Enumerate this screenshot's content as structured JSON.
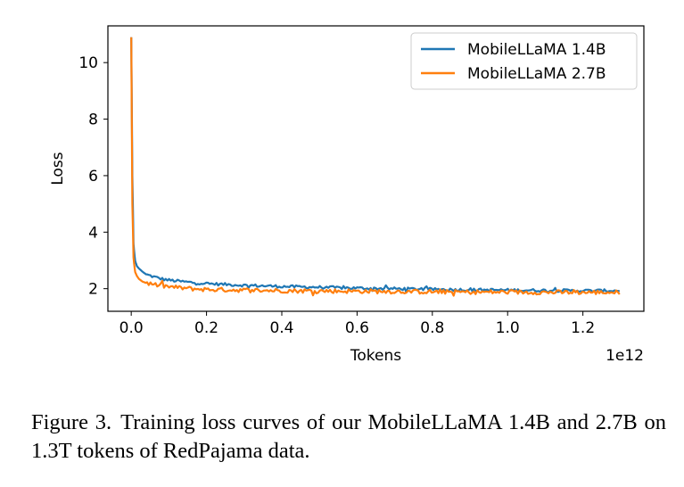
{
  "chart_data": {
    "type": "line",
    "xlabel": "Tokens",
    "ylabel": "Loss",
    "x_offset_label": "1e12",
    "xlim": [
      -0.062,
      1.362
    ],
    "ylim": [
      1.2,
      11.3
    ],
    "x_ticks": [
      0.0,
      0.2,
      0.4,
      0.6,
      0.8,
      1.0,
      1.2
    ],
    "x_tick_labels": [
      "0.0",
      "0.2",
      "0.4",
      "0.6",
      "0.8",
      "1.0",
      "1.2"
    ],
    "y_ticks": [
      2,
      4,
      6,
      8,
      10
    ],
    "y_tick_labels": [
      "2",
      "4",
      "6",
      "8",
      "10"
    ],
    "legend_position": "upper-right",
    "series": [
      {
        "name": "MobileLLaMA 1.4B",
        "color": "#1f77b4",
        "x": [
          0.0,
          0.003,
          0.006,
          0.01,
          0.015,
          0.02,
          0.03,
          0.04,
          0.06,
          0.08,
          0.1,
          0.13,
          0.16,
          0.2,
          0.25,
          0.3,
          0.4,
          0.5,
          0.6,
          0.7,
          0.8,
          0.9,
          1.0,
          1.1,
          1.2,
          1.3
        ],
        "y": [
          10.9,
          6.0,
          3.6,
          3.0,
          2.8,
          2.72,
          2.6,
          2.5,
          2.42,
          2.35,
          2.3,
          2.26,
          2.22,
          2.18,
          2.15,
          2.12,
          2.08,
          2.05,
          2.02,
          2.0,
          1.98,
          1.96,
          1.95,
          1.94,
          1.93,
          1.93
        ]
      },
      {
        "name": "MobileLLaMA 2.7B",
        "color": "#ff7f0e",
        "x": [
          0.0,
          0.003,
          0.006,
          0.01,
          0.015,
          0.02,
          0.03,
          0.04,
          0.06,
          0.08,
          0.1,
          0.13,
          0.16,
          0.2,
          0.25,
          0.3,
          0.4,
          0.5,
          0.6,
          0.7,
          0.8,
          0.9,
          1.0,
          1.1,
          1.2,
          1.3
        ],
        "y": [
          10.9,
          5.0,
          3.1,
          2.6,
          2.45,
          2.35,
          2.25,
          2.2,
          2.15,
          2.1,
          2.07,
          2.03,
          2.0,
          1.97,
          1.96,
          1.95,
          1.93,
          1.92,
          1.91,
          1.9,
          1.89,
          1.88,
          1.88,
          1.87,
          1.87,
          1.87
        ]
      }
    ]
  },
  "caption": {
    "label": "Figure 3.",
    "text": "Training loss curves of our MobileLLaMA 1.4B and 2.7B on 1.3T tokens of RedPajama data."
  }
}
